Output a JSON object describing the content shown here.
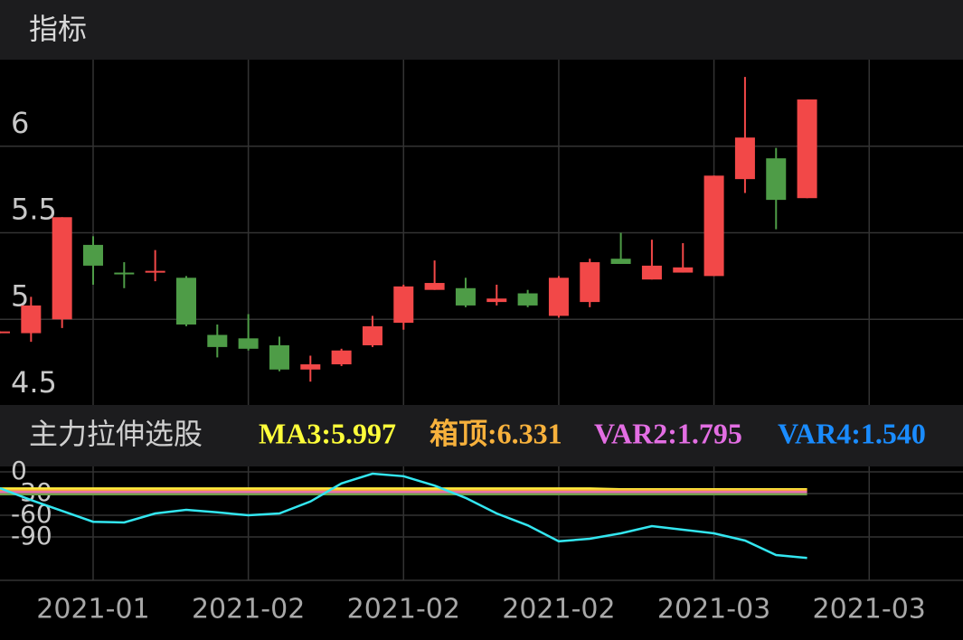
{
  "header": {
    "title": "指标"
  },
  "chart_data": [
    {
      "type": "candlestick",
      "categories": [
        null,
        null,
        null,
        "2021-01",
        null,
        null,
        null,
        null,
        "2021-02",
        null,
        null,
        null,
        null,
        "2021-02",
        null,
        null,
        null,
        null,
        "2021-02",
        null,
        null,
        null,
        null,
        "2021-03",
        null,
        null,
        null,
        null,
        "2021-03",
        null,
        null
      ],
      "open": [
        4.92,
        4.92,
        5.0,
        5.43,
        5.27,
        5.27,
        5.24,
        4.91,
        4.89,
        4.85,
        4.71,
        4.74,
        4.85,
        4.98,
        5.17,
        5.18,
        5.1,
        5.15,
        5.02,
        5.1,
        5.35,
        5.23,
        5.27,
        5.25,
        5.81,
        5.93,
        5.7,
        null,
        null,
        null,
        null
      ],
      "high": [
        4.93,
        5.13,
        5.59,
        5.48,
        5.33,
        5.4,
        5.25,
        4.97,
        5.03,
        4.9,
        4.79,
        4.83,
        5.02,
        5.2,
        5.34,
        5.24,
        5.2,
        5.17,
        5.25,
        5.35,
        5.5,
        5.46,
        5.44,
        5.83,
        6.4,
        5.99,
        6.27,
        null,
        null,
        null,
        null
      ],
      "low": [
        4.92,
        4.87,
        4.95,
        5.2,
        5.18,
        5.22,
        4.96,
        4.78,
        4.82,
        4.7,
        4.64,
        4.73,
        4.84,
        4.94,
        5.17,
        5.07,
        5.08,
        5.07,
        5.01,
        5.07,
        5.32,
        5.23,
        5.27,
        5.25,
        5.73,
        5.52,
        5.7,
        null,
        null,
        null,
        null
      ],
      "close": [
        4.93,
        5.08,
        5.59,
        5.31,
        5.26,
        5.28,
        4.97,
        4.84,
        4.83,
        4.71,
        4.74,
        4.82,
        4.96,
        5.19,
        5.21,
        5.08,
        5.12,
        5.08,
        5.24,
        5.33,
        5.32,
        5.31,
        5.3,
        5.83,
        6.05,
        5.69,
        6.27,
        null,
        null,
        null,
        null
      ],
      "up_color": "#f24848",
      "down_color": "#4e9c47",
      "ylim": [
        4.5,
        6.5
      ],
      "yticks": [
        6,
        5.5,
        5,
        4.5
      ],
      "grid": true
    },
    {
      "type": "line",
      "title": "主力拉伸选股",
      "indicators": [
        {
          "text": "MA3:5.997",
          "color": "#ffff3a"
        },
        {
          "text": "箱顶:6.331",
          "color": "#f7b13c"
        },
        {
          "text": "VAR2:1.795",
          "color": "#e36ee3"
        },
        {
          "text": "VAR4:1.540",
          "color": "#1a8cff"
        }
      ],
      "series": [
        {
          "color": "#ffeb3b",
          "values": [
            -23,
            -23,
            -23,
            -23,
            -23,
            -23,
            -23,
            -23,
            -23,
            -23,
            -23,
            -23,
            -23,
            -23,
            -23,
            -23,
            -23,
            -23,
            -23,
            -23,
            -24,
            -24,
            -24,
            -24,
            -24,
            -24,
            -24,
            null,
            null,
            null,
            null
          ]
        },
        {
          "color": "#f7a53c",
          "values": [
            -26,
            -26,
            -26,
            -26,
            -26,
            -26,
            -26,
            -26,
            -26,
            -26,
            -26,
            -26,
            -26,
            -26,
            -26,
            -26,
            -26,
            -26,
            -26,
            -26,
            -26,
            -26,
            -26,
            -26,
            -26,
            -26,
            -26,
            null,
            null,
            null,
            null
          ]
        },
        {
          "color": "#e66fb0",
          "values": [
            -28,
            -28,
            -28,
            -28,
            -28,
            -28,
            -28,
            -28,
            -28,
            -28,
            -28,
            -28,
            -28,
            -28,
            -28,
            -28,
            -28,
            -28,
            -28,
            -28,
            -28,
            -28,
            -28,
            -28,
            -28,
            -28,
            -28,
            null,
            null,
            null,
            null
          ]
        },
        {
          "color": "#6fa04a",
          "values": [
            -31,
            -31,
            -31,
            -31,
            -31,
            -31,
            -31,
            -31,
            -31,
            -31,
            -31,
            -31,
            -31,
            -31,
            -31,
            -31,
            -31,
            -31,
            -31,
            -31,
            -31,
            -31,
            -31,
            -31,
            -31,
            -31,
            -31,
            null,
            null,
            null,
            null
          ]
        },
        {
          "color": "#33e6f0",
          "values": [
            -22.5,
            -39,
            -54,
            -69,
            -70,
            -57.5,
            -52.5,
            -56,
            -60,
            -57.5,
            -41,
            -16,
            -2.5,
            -6,
            -19,
            -36,
            -57.5,
            -74,
            -96,
            -92.5,
            -85,
            -75,
            -80,
            -85,
            -95,
            -115,
            -119,
            null,
            null,
            null,
            null
          ]
        }
      ],
      "ylim": [
        -150,
        7.5
      ],
      "yticks": [
        0,
        -30,
        -60,
        -90
      ],
      "grid": true
    }
  ]
}
